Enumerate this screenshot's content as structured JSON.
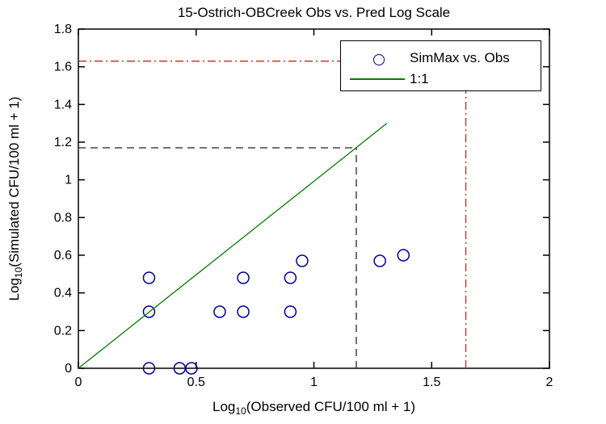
{
  "chart_data": {
    "type": "scatter",
    "title": "15-Ostrich-OBCreek Obs vs. Pred Log Scale",
    "xlabel": {
      "prefix": "Log",
      "sub": "10",
      "rest": "(Observed CFU/100 ml + 1)"
    },
    "ylabel": {
      "prefix": "Log",
      "sub": "10",
      "rest": "(Simulated CFU/100 ml + 1)"
    },
    "xlim": [
      0,
      2
    ],
    "ylim": [
      0,
      1.8
    ],
    "xticks": {
      "values": [
        0,
        0.5,
        1,
        1.5,
        2
      ],
      "labels": [
        "0",
        "0.5",
        "1",
        "1.5",
        "2"
      ]
    },
    "yticks": {
      "values": [
        0,
        0.2,
        0.4,
        0.6,
        0.8,
        1,
        1.2,
        1.4,
        1.6,
        1.8
      ],
      "labels": [
        "0",
        "0.2",
        "0.4",
        "0.6",
        "0.8",
        "1",
        "1.2",
        "1.4",
        "1.6",
        "1.8"
      ]
    },
    "grid": false,
    "series": [
      {
        "name": "SimMax vs. Obs",
        "type": "scatter",
        "marker": "circle",
        "color": "#000099",
        "points": [
          [
            0.3,
            0.48
          ],
          [
            0.3,
            0.3
          ],
          [
            0.3,
            0.0
          ],
          [
            0.43,
            0.0
          ],
          [
            0.48,
            0.0
          ],
          [
            0.6,
            0.3
          ],
          [
            0.7,
            0.48
          ],
          [
            0.7,
            0.3
          ],
          [
            0.9,
            0.48
          ],
          [
            0.9,
            0.3
          ],
          [
            0.95,
            0.57
          ],
          [
            1.28,
            0.57
          ],
          [
            1.38,
            0.6
          ]
        ]
      },
      {
        "name": "1:1",
        "type": "line",
        "color": "#007f00",
        "x": [
          0,
          1.31
        ],
        "y": [
          0,
          1.3
        ]
      }
    ],
    "reference_lines": [
      {
        "name": "max-red-horizontal",
        "orientation": "horizontal",
        "y": 1.63,
        "x_range": [
          0,
          1.645
        ],
        "style": "dashdot",
        "color": "#cc2222"
      },
      {
        "name": "max-red-vertical",
        "orientation": "vertical",
        "x": 1.645,
        "y_range": [
          0,
          1.63
        ],
        "style": "dashdot",
        "color": "#cc2222"
      },
      {
        "name": "black-dashed-horizontal",
        "orientation": "horizontal",
        "y": 1.17,
        "x_range": [
          0,
          1.18
        ],
        "style": "dashed",
        "color": "#222222"
      },
      {
        "name": "black-dashed-vertical",
        "orientation": "vertical",
        "x": 1.18,
        "y_range": [
          0,
          1.17
        ],
        "style": "dashed",
        "color": "#222222"
      }
    ],
    "legend": {
      "position": "top-right",
      "entries": [
        {
          "label": "SimMax vs. Obs",
          "marker": "circle",
          "color": "#000099"
        },
        {
          "label": "1:1",
          "marker": "line",
          "color": "#007f00"
        }
      ]
    }
  }
}
